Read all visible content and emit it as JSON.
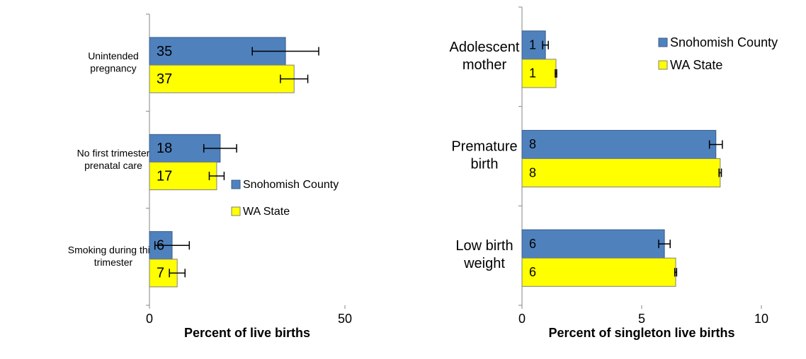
{
  "chart_data": [
    {
      "type": "bar",
      "orientation": "horizontal",
      "categories": [
        "Unintended\npregnancy",
        "No first trimester\nprenatal care",
        "Smoking during third\ntrimester"
      ],
      "series": [
        {
          "name": "Snohomish County",
          "color": "#4f81bd",
          "values": [
            34.8,
            18.1,
            5.8
          ],
          "value_labels": [
            "35",
            "18",
            "6"
          ],
          "errors": [
            8.5,
            4.2,
            4.4
          ]
        },
        {
          "name": "WA State",
          "color": "#ffff00",
          "values": [
            37.0,
            17.2,
            7.1
          ],
          "value_labels": [
            "37",
            "17",
            "7"
          ],
          "errors": [
            3.5,
            1.9,
            2.0
          ]
        }
      ],
      "x_label": "Percent of live births",
      "xlim": [
        0,
        50
      ],
      "xticks": [
        0,
        50
      ],
      "legend": "center right"
    },
    {
      "type": "bar",
      "orientation": "horizontal",
      "categories": [
        "Adolescent\nmother",
        "Premature\nbirth",
        "Low birth\nweight"
      ],
      "series": [
        {
          "name": "Snohomish County",
          "color": "#4f81bd",
          "values": [
            0.98,
            8.1,
            5.95
          ],
          "value_labels": [
            "1",
            "8",
            "6"
          ],
          "errors": [
            0.12,
            0.27,
            0.24
          ]
        },
        {
          "name": "WA State",
          "color": "#ffff00",
          "values": [
            1.42,
            8.28,
            6.42
          ],
          "value_labels": [
            "1",
            "8",
            "6"
          ],
          "errors": [
            0.03,
            0.05,
            0.04
          ]
        }
      ],
      "x_label": "Percent of singleton live births",
      "xlim": [
        0,
        10
      ],
      "xticks": [
        0,
        5,
        10
      ],
      "legend": "upper right"
    }
  ]
}
